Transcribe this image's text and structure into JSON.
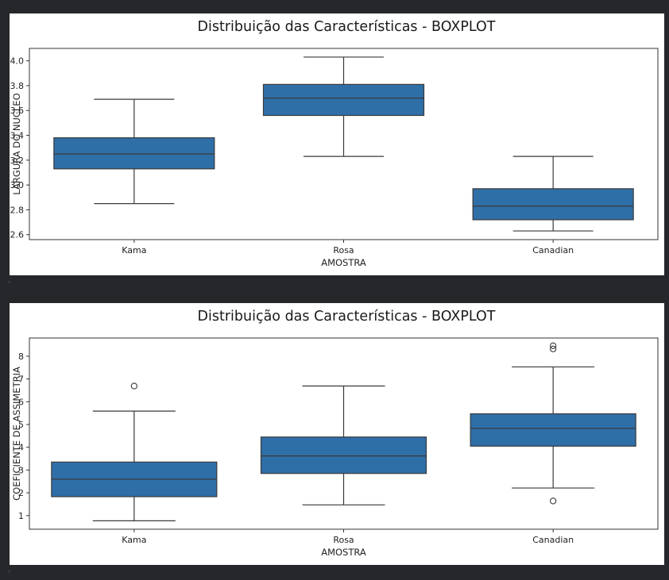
{
  "chart_data": [
    {
      "type": "boxplot",
      "title": "Distribuição das Características - BOXPLOT",
      "xlabel": "AMOSTRA",
      "ylabel": "LARGURA DO NUCLEO",
      "categories": [
        "Kama",
        "Rosa",
        "Canadian"
      ],
      "ylim": [
        2.56,
        4.1
      ],
      "yticks": [
        2.6,
        2.8,
        3.0,
        3.2,
        3.4,
        3.6,
        3.8,
        4.0
      ],
      "ytick_labels": [
        "2.6",
        "2.8",
        "3.0",
        "3.2",
        "3.4",
        "3.6",
        "3.8",
        "4.0"
      ],
      "boxes": [
        {
          "category": "Kama",
          "whisker_low": 2.85,
          "q1": 3.13,
          "median": 3.25,
          "q3": 3.38,
          "whisker_high": 3.69,
          "outliers": []
        },
        {
          "category": "Rosa",
          "whisker_low": 3.23,
          "q1": 3.56,
          "median": 3.7,
          "q3": 3.81,
          "whisker_high": 4.03,
          "outliers": []
        },
        {
          "category": "Canadian",
          "whisker_low": 2.63,
          "q1": 2.72,
          "median": 2.83,
          "q3": 2.97,
          "whisker_high": 3.23,
          "outliers": []
        }
      ],
      "color": "#2f6fa8",
      "grid": false
    },
    {
      "type": "boxplot",
      "title": "Distribuição das Características - BOXPLOT",
      "xlabel": "AMOSTRA",
      "ylabel": "COEFICIENTE DE ASSIMETRIA",
      "categories": [
        "Kama",
        "Rosa",
        "Canadian"
      ],
      "ylim": [
        0.4,
        8.8
      ],
      "yticks": [
        1,
        2,
        3,
        4,
        5,
        6,
        7,
        8
      ],
      "ytick_labels": [
        "1",
        "2",
        "3",
        "4",
        "5",
        "6",
        "7",
        "8"
      ],
      "boxes": [
        {
          "category": "Kama",
          "whisker_low": 0.77,
          "q1": 1.83,
          "median": 2.6,
          "q3": 3.35,
          "whisker_high": 5.59,
          "outliers": [
            6.69
          ]
        },
        {
          "category": "Rosa",
          "whisker_low": 1.47,
          "q1": 2.85,
          "median": 3.62,
          "q3": 4.45,
          "whisker_high": 6.69,
          "outliers": []
        },
        {
          "category": "Canadian",
          "whisker_low": 2.21,
          "q1": 4.05,
          "median": 4.83,
          "q3": 5.47,
          "whisker_high": 7.53,
          "outliers": [
            1.64,
            8.32,
            8.46
          ]
        }
      ],
      "color": "#2f6fa8",
      "grid": false
    }
  ]
}
